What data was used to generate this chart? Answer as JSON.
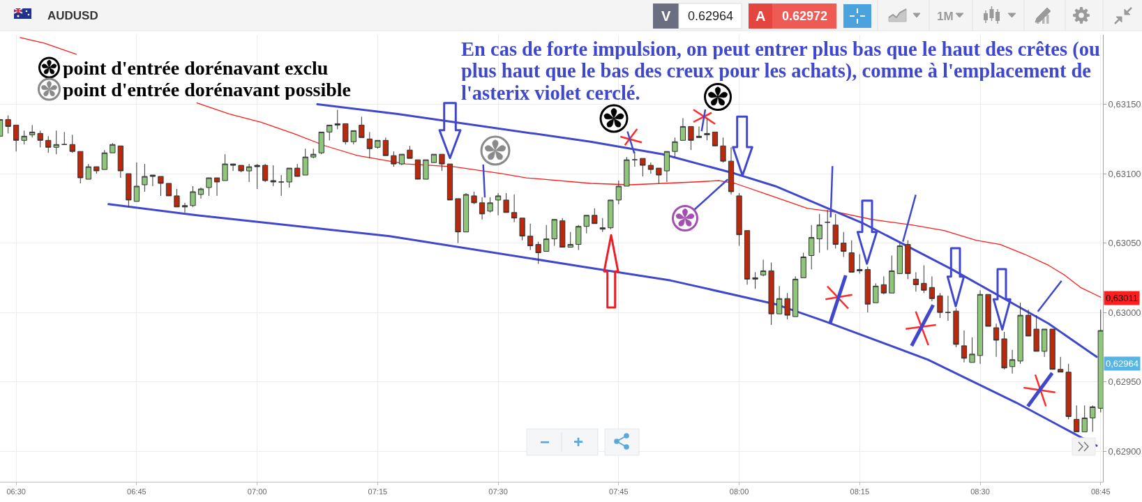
{
  "chart_data": {
    "type": "candlestick",
    "title": "AUDUSD",
    "x": [
      6.46667,
      6.48333,
      6.5,
      6.51667,
      6.53333,
      6.55,
      6.56667,
      6.58333,
      6.6,
      6.61667,
      6.63333,
      6.65,
      6.66667,
      6.68333,
      6.7,
      6.71667,
      6.73333,
      6.75,
      6.76667,
      6.78333,
      6.8,
      6.81667,
      6.83333,
      6.85,
      6.86667,
      6.88333,
      6.9,
      6.91667,
      6.93333,
      6.95,
      6.96667,
      6.98333,
      7.0,
      7.01667,
      7.03333,
      7.05,
      7.06667,
      7.08333,
      7.1,
      7.11667,
      7.13333,
      7.15,
      7.16667,
      7.18333,
      7.2,
      7.21667,
      7.23333,
      7.25,
      7.26667,
      7.28333,
      7.3,
      7.31667,
      7.33333,
      7.35,
      7.36667,
      7.38333,
      7.4,
      7.41667,
      7.43333,
      7.45,
      7.46667,
      7.48333,
      7.5,
      7.51667,
      7.53333,
      7.55,
      7.56667,
      7.58333,
      7.6,
      7.61667,
      7.63333,
      7.65,
      7.66667,
      7.68333,
      7.7,
      7.71667,
      7.73333,
      7.75,
      7.76667,
      7.78333,
      7.8,
      7.81667,
      7.83333,
      7.85,
      7.86667,
      7.88333,
      7.9,
      7.91667,
      7.93333,
      7.95,
      7.96667,
      7.98333,
      8.0,
      8.01667,
      8.03333,
      8.05,
      8.06667,
      8.08333,
      8.1,
      8.11667,
      8.13333,
      8.15,
      8.16667,
      8.18333,
      8.2,
      8.21667,
      8.23333,
      8.25,
      8.26667,
      8.28333,
      8.3,
      8.31667,
      8.33333,
      8.35,
      8.36667,
      8.38333,
      8.4,
      8.41667,
      8.43333,
      8.45,
      8.46667,
      8.48333,
      8.5,
      8.51667,
      8.53333,
      8.55,
      8.56667,
      8.58333,
      8.6,
      8.61667,
      8.63333,
      8.65,
      8.66667,
      8.68333,
      8.7,
      8.71667,
      8.73333,
      8.75
    ],
    "ohlc": [
      [
        0.63127,
        0.63139,
        0.63127,
        0.63139
      ],
      [
        0.63139,
        0.63142,
        0.63129,
        0.63134
      ],
      [
        0.63135,
        0.63135,
        0.63116,
        0.63124
      ],
      [
        0.63124,
        0.63131,
        0.63121,
        0.63127
      ],
      [
        0.63128,
        0.63135,
        0.63126,
        0.6313
      ],
      [
        0.63129,
        0.63131,
        0.63119,
        0.63124
      ],
      [
        0.63124,
        0.63127,
        0.63115,
        0.63119
      ],
      [
        0.63119,
        0.63131,
        0.63114,
        0.63121
      ],
      [
        0.63121,
        0.6313,
        0.63121,
        0.63121
      ],
      [
        0.63121,
        0.63128,
        0.63115,
        0.63116
      ],
      [
        0.63116,
        0.63116,
        0.63093,
        0.63097
      ],
      [
        0.63096,
        0.63107,
        0.63096,
        0.63105
      ],
      [
        0.63105,
        0.63105,
        0.631,
        0.63102
      ],
      [
        0.63103,
        0.63117,
        0.63103,
        0.63115
      ],
      [
        0.63115,
        0.63122,
        0.63115,
        0.63121
      ],
      [
        0.6312,
        0.6312,
        0.63097,
        0.63102
      ],
      [
        0.631,
        0.631,
        0.63076,
        0.63081
      ],
      [
        0.6308,
        0.63108,
        0.6308,
        0.63091
      ],
      [
        0.63092,
        0.63107,
        0.63087,
        0.63098
      ],
      [
        0.63099,
        0.63099,
        0.63091,
        0.63098
      ],
      [
        0.63098,
        0.63098,
        0.63084,
        0.63093
      ],
      [
        0.63093,
        0.63093,
        0.63084,
        0.63084
      ],
      [
        0.63084,
        0.63089,
        0.63076,
        0.63076
      ],
      [
        0.63076,
        0.63079,
        0.63072,
        0.63077
      ],
      [
        0.63077,
        0.63091,
        0.63076,
        0.63087
      ],
      [
        0.63085,
        0.6309,
        0.63082,
        0.63089
      ],
      [
        0.6309,
        0.63097,
        0.63084,
        0.63097
      ],
      [
        0.63097,
        0.63097,
        0.63084,
        0.63094
      ],
      [
        0.63095,
        0.63114,
        0.63095,
        0.63107
      ],
      [
        0.63107,
        0.63107,
        0.63102,
        0.63106
      ],
      [
        0.63106,
        0.63106,
        0.63101,
        0.63102
      ],
      [
        0.63102,
        0.63107,
        0.63094,
        0.63105
      ],
      [
        0.63105,
        0.63107,
        0.63089,
        0.63106
      ],
      [
        0.63106,
        0.63107,
        0.63094,
        0.63095
      ],
      [
        0.63095,
        0.63106,
        0.63091,
        0.63094
      ],
      [
        0.63094,
        0.63099,
        0.63084,
        0.63094
      ],
      [
        0.63094,
        0.63104,
        0.6309,
        0.63104
      ],
      [
        0.63104,
        0.63107,
        0.63098,
        0.63098
      ],
      [
        0.63099,
        0.63118,
        0.63099,
        0.63112
      ],
      [
        0.63112,
        0.63118,
        0.63111,
        0.63114
      ],
      [
        0.63115,
        0.6313,
        0.63114,
        0.6313
      ],
      [
        0.6313,
        0.63135,
        0.63124,
        0.63135
      ],
      [
        0.63135,
        0.63146,
        0.63132,
        0.63136
      ],
      [
        0.63136,
        0.63136,
        0.63121,
        0.63123
      ],
      [
        0.63123,
        0.63131,
        0.63121,
        0.63131
      ],
      [
        0.63135,
        0.63141,
        0.63126,
        0.63126
      ],
      [
        0.63125,
        0.6313,
        0.63111,
        0.63118
      ],
      [
        0.63119,
        0.63124,
        0.63118,
        0.63124
      ],
      [
        0.63124,
        0.63126,
        0.63113,
        0.63113
      ],
      [
        0.63113,
        0.63116,
        0.63105,
        0.63107
      ],
      [
        0.63107,
        0.63114,
        0.63106,
        0.63114
      ],
      [
        0.63117,
        0.6312,
        0.63111,
        0.63111
      ],
      [
        0.6311,
        0.6311,
        0.63096,
        0.63096
      ],
      [
        0.63096,
        0.6311,
        0.63096,
        0.6311
      ],
      [
        0.63108,
        0.63114,
        0.63108,
        0.63114
      ],
      [
        0.63114,
        0.63114,
        0.63102,
        0.63107
      ],
      [
        0.63107,
        0.63107,
        0.63081,
        0.63081
      ],
      [
        0.63082,
        0.63082,
        0.6305,
        0.63058
      ],
      [
        0.63058,
        0.63086,
        0.63058,
        0.63085
      ],
      [
        0.63084,
        0.63087,
        0.63078,
        0.63079
      ],
      [
        0.63079,
        0.63083,
        0.63067,
        0.63071
      ],
      [
        0.63073,
        0.63083,
        0.63072,
        0.63079
      ],
      [
        0.63081,
        0.63086,
        0.6307,
        0.63084
      ],
      [
        0.63081,
        0.63086,
        0.63072,
        0.63072
      ],
      [
        0.63072,
        0.63085,
        0.63065,
        0.63068
      ],
      [
        0.63068,
        0.63068,
        0.63052,
        0.63055
      ],
      [
        0.63055,
        0.63064,
        0.63045,
        0.63048
      ],
      [
        0.63049,
        0.63051,
        0.63035,
        0.63043
      ],
      [
        0.63044,
        0.63063,
        0.63044,
        0.63053
      ],
      [
        0.63053,
        0.63067,
        0.63048,
        0.63067
      ],
      [
        0.63066,
        0.63068,
        0.63047,
        0.63047
      ],
      [
        0.63047,
        0.63058,
        0.63047,
        0.63049
      ],
      [
        0.63049,
        0.63063,
        0.63045,
        0.63062
      ],
      [
        0.63062,
        0.6307,
        0.63057,
        0.6307
      ],
      [
        0.6307,
        0.63075,
        0.63064,
        0.63064
      ],
      [
        0.63061,
        0.63068,
        0.63058,
        0.6306
      ],
      [
        0.63061,
        0.63081,
        0.6306,
        0.63081
      ],
      [
        0.63081,
        0.63095,
        0.63078,
        0.63091
      ],
      [
        0.63091,
        0.63112,
        0.63091,
        0.6311
      ],
      [
        0.6311,
        0.63116,
        0.63105,
        0.6311
      ],
      [
        0.63111,
        0.63111,
        0.63098,
        0.63106
      ],
      [
        0.63106,
        0.63108,
        0.631,
        0.63103
      ],
      [
        0.63104,
        0.63104,
        0.63093,
        0.63099
      ],
      [
        0.63102,
        0.63116,
        0.63094,
        0.63116
      ],
      [
        0.63116,
        0.63126,
        0.63112,
        0.63123
      ],
      [
        0.63124,
        0.6314,
        0.63124,
        0.63134
      ],
      [
        0.63134,
        0.63134,
        0.63117,
        0.63124
      ],
      [
        0.63126,
        0.63134,
        0.63126,
        0.63127
      ],
      [
        0.63128,
        0.63139,
        0.63124,
        0.63129
      ],
      [
        0.6313,
        0.6313,
        0.6312,
        0.6312
      ],
      [
        0.6312,
        0.63126,
        0.63108,
        0.63109
      ],
      [
        0.63109,
        0.63119,
        0.63085,
        0.63087
      ],
      [
        0.63084,
        0.63086,
        0.63048,
        0.63056
      ],
      [
        0.63059,
        0.63059,
        0.6302,
        0.63024
      ],
      [
        0.63024,
        0.63029,
        0.63017,
        0.63025
      ],
      [
        0.63027,
        0.63038,
        0.63026,
        0.6303
      ],
      [
        0.6303,
        0.63036,
        0.62991,
        0.62999
      ],
      [
        0.62999,
        0.63019,
        0.62999,
        0.6301
      ],
      [
        0.6301,
        0.63014,
        0.62995,
        0.62998
      ],
      [
        0.62997,
        0.63026,
        0.62997,
        0.63024
      ],
      [
        0.63025,
        0.63043,
        0.63025,
        0.6304
      ],
      [
        0.63041,
        0.63063,
        0.63031,
        0.63054
      ],
      [
        0.63053,
        0.63071,
        0.63043,
        0.63063
      ],
      [
        0.63065,
        0.63074,
        0.63045,
        0.63065
      ],
      [
        0.63063,
        0.63071,
        0.63046,
        0.63049
      ],
      [
        0.6305,
        0.63058,
        0.6304,
        0.63044
      ],
      [
        0.63043,
        0.63052,
        0.63029,
        0.63029
      ],
      [
        0.6303,
        0.63042,
        0.63028,
        0.63031
      ],
      [
        0.63031,
        0.63033,
        0.63,
        0.63006
      ],
      [
        0.63007,
        0.63021,
        0.63007,
        0.63019
      ],
      [
        0.6302,
        0.63026,
        0.63013,
        0.63014
      ],
      [
        0.63014,
        0.63041,
        0.63014,
        0.6303
      ],
      [
        0.63028,
        0.6305,
        0.63028,
        0.63048
      ],
      [
        0.63049,
        0.63052,
        0.63024,
        0.63028
      ],
      [
        0.63024,
        0.63029,
        0.63015,
        0.6302
      ],
      [
        0.63021,
        0.63034,
        0.63014,
        0.63016
      ],
      [
        0.63018,
        0.63026,
        0.63008,
        0.6301
      ],
      [
        0.63012,
        0.63014,
        0.62996,
        0.63
      ],
      [
        0.63,
        0.63012,
        0.62994,
        0.63
      ],
      [
        0.63001,
        0.63003,
        0.62975,
        0.62977
      ],
      [
        0.62976,
        0.62987,
        0.62964,
        0.62967
      ],
      [
        0.62964,
        0.62982,
        0.62964,
        0.6297
      ],
      [
        0.62969,
        0.63016,
        0.62963,
        0.63013
      ],
      [
        0.63013,
        0.63013,
        0.6299,
        0.6299
      ],
      [
        0.62989,
        0.62992,
        0.62968,
        0.6298
      ],
      [
        0.62981,
        0.62986,
        0.62959,
        0.6296
      ],
      [
        0.62961,
        0.62973,
        0.62956,
        0.62966
      ],
      [
        0.62965,
        0.63007,
        0.62963,
        0.62998
      ],
      [
        0.62998,
        0.63002,
        0.62983,
        0.62983
      ],
      [
        0.62988,
        0.62998,
        0.62972,
        0.62972
      ],
      [
        0.62972,
        0.62988,
        0.62968,
        0.62988
      ],
      [
        0.62988,
        0.62988,
        0.62959,
        0.62959
      ],
      [
        0.62959,
        0.62968,
        0.62957,
        0.62957
      ],
      [
        0.62957,
        0.62963,
        0.62923,
        0.62925
      ],
      [
        0.62923,
        0.62933,
        0.62914,
        0.62914
      ],
      [
        0.62914,
        0.62933,
        0.62914,
        0.62924
      ],
      [
        0.62924,
        0.62933,
        0.62914,
        0.62932
      ],
      [
        0.62931,
        0.63002,
        0.62928,
        0.62987
      ]
    ],
    "colors": [
      "#8fc67c",
      "#b8290e",
      "#b8290e",
      "#8fc67c",
      "#8fc67c",
      "#b8290e",
      "#b8290e",
      "#8fc67c",
      "#353535",
      "#b8290e",
      "#b8290e",
      "#8fc67c",
      "#b8290e",
      "#8fc67c",
      "#8fc67c",
      "#b8290e",
      "#b8290e",
      "#8fc67c",
      "#8fc67c",
      "#353535",
      "#b8290e",
      "#b8290e",
      "#b8290e",
      "#353535",
      "#8fc67c",
      "#8fc67c",
      "#8fc67c",
      "#b8290e",
      "#8fc67c",
      "#353535",
      "#b8290e",
      "#8fc67c",
      "#353535",
      "#b8290e",
      "#353535",
      "#353535",
      "#8fc67c",
      "#b8290e",
      "#8fc67c",
      "#8fc67c",
      "#8fc67c",
      "#8fc67c",
      "#353535",
      "#b8290e",
      "#8fc67c",
      "#b8290e",
      "#b8290e",
      "#8fc67c",
      "#b8290e",
      "#b8290e",
      "#8fc67c",
      "#b8290e",
      "#b8290e",
      "#8fc67c",
      "#8fc67c",
      "#b8290e",
      "#b8290e",
      "#b8290e",
      "#8fc67c",
      "#b8290e",
      "#b8290e",
      "#8fc67c",
      "#8fc67c",
      "#b8290e",
      "#b8290e",
      "#b8290e",
      "#b8290e",
      "#b8290e",
      "#8fc67c",
      "#8fc67c",
      "#b8290e",
      "#8fc67c",
      "#8fc67c",
      "#8fc67c",
      "#b8290e",
      "#353535",
      "#8fc67c",
      "#8fc67c",
      "#8fc67c",
      "#353535",
      "#b8290e",
      "#b8290e",
      "#b8290e",
      "#8fc67c",
      "#8fc67c",
      "#8fc67c",
      "#b8290e",
      "#353535",
      "#353535",
      "#b8290e",
      "#b8290e",
      "#b8290e",
      "#b8290e",
      "#b8290e",
      "#353535",
      "#8fc67c",
      "#b8290e",
      "#8fc67c",
      "#b8290e",
      "#8fc67c",
      "#8fc67c",
      "#8fc67c",
      "#8fc67c",
      "#353535",
      "#b8290e",
      "#b8290e",
      "#b8290e",
      "#353535",
      "#b8290e",
      "#8fc67c",
      "#b8290e",
      "#8fc67c",
      "#8fc67c",
      "#b8290e",
      "#b8290e",
      "#b8290e",
      "#b8290e",
      "#b8290e",
      "#353535",
      "#b8290e",
      "#b8290e",
      "#8fc67c",
      "#8fc67c",
      "#b8290e",
      "#b8290e",
      "#b8290e",
      "#8fc67c",
      "#8fc67c",
      "#b8290e",
      "#b8290e",
      "#8fc67c",
      "#b8290e",
      "#b8290e",
      "#b8290e",
      "#b8290e",
      "#8fc67c",
      "#8fc67c",
      "#8fc67c"
    ],
    "series": [
      {
        "type": "line",
        "color": "#ff1a1a",
        "x": [
          6.50833,
          6.55833,
          6.625,
          6.69167,
          6.875,
          6.94167,
          7.00833,
          7.075,
          7.14167,
          7.20833,
          7.25833,
          7.30833,
          7.40833,
          7.50833,
          7.55833,
          7.69167,
          7.775,
          7.84167,
          7.90833,
          7.95833,
          7.99167,
          8.05833,
          8.14167,
          8.20833,
          8.275,
          8.35833,
          8.425,
          8.49167,
          8.54167,
          8.59167,
          8.64167,
          8.675,
          8.70833,
          8.75
        ],
        "values": [
          0.63198,
          0.63194,
          0.63186,
          null,
          0.63151,
          0.63143,
          0.63137,
          0.63129,
          0.6312,
          0.63113,
          0.6311,
          0.63107,
          0.63105,
          0.631,
          0.63097,
          0.63093,
          0.63092,
          0.63093,
          0.63094,
          0.63095,
          0.63093,
          0.63085,
          0.63075,
          0.63072,
          0.63067,
          0.63063,
          0.63059,
          0.63052,
          0.63049,
          0.63042,
          0.63034,
          0.63027,
          0.63018,
          0.63011
        ]
      },
      {
        "type": "line",
        "color": "#3f48cc",
        "x": [
          7.125,
          7.29167,
          7.69167,
          7.84167,
          7.99167,
          8.075,
          8.25833,
          8.44167,
          8.64167,
          8.74167
        ],
        "values": [
          0.6315,
          0.63143,
          0.63123,
          0.63114,
          0.631,
          0.63091,
          0.63064,
          0.63031,
          0.62992,
          0.62968
        ]
      },
      {
        "type": "line",
        "color": "#3f48cc",
        "x": [
          6.69167,
          6.875,
          7.275,
          7.675,
          7.85833,
          8.075,
          8.175,
          8.39167,
          8.575,
          8.74167
        ],
        "values": [
          0.63078,
          0.6307,
          0.63055,
          0.63033,
          0.63023,
          0.63006,
          0.62994,
          0.62966,
          0.62935,
          0.62904
        ]
      }
    ],
    "xlim": [
      6.4665,
      8.7547
    ],
    "xticks": [
      {
        "value": 6.5,
        "label": "06:30"
      },
      {
        "value": 6.75,
        "label": "06:45"
      },
      {
        "value": 7.0,
        "label": "07:00"
      },
      {
        "value": 7.25,
        "label": "07:15"
      },
      {
        "value": 7.5,
        "label": "07:30"
      },
      {
        "value": 7.75,
        "label": "07:45"
      },
      {
        "value": 8.0,
        "label": "08:00"
      },
      {
        "value": 8.25,
        "label": "08:15"
      },
      {
        "value": 8.5,
        "label": "08:30"
      },
      {
        "value": 8.75,
        "label": "08:45"
      }
    ],
    "ylim": [
      0.62878,
      0.632
    ],
    "yticks": [
      {
        "value": 0.629,
        "label": "0,62900"
      },
      {
        "value": 0.6295,
        "label": "0,62950"
      },
      {
        "value": 0.63,
        "label": "0,63000"
      },
      {
        "value": 0.6305,
        "label": "0,63050"
      },
      {
        "value": 0.631,
        "label": "0,63100"
      },
      {
        "value": 0.6315,
        "label": "0,63150"
      }
    ],
    "grid": true,
    "annotations": [
      "En cas de forte impulsion, on peut entrer plus bas que le haut des crêtes (ou\nplus haut que le bas des creux pour les achats), comme à l'emplacement de\nl'asterix violet cerclé.",
      "point d'entrée dorénavant exclu",
      "point d'entrée dorénavant possible",
      "V",
      "0.62964",
      "A",
      "0.62972",
      "1M",
      "0,63011",
      "0,62964",
      "−",
      "+"
    ]
  }
}
